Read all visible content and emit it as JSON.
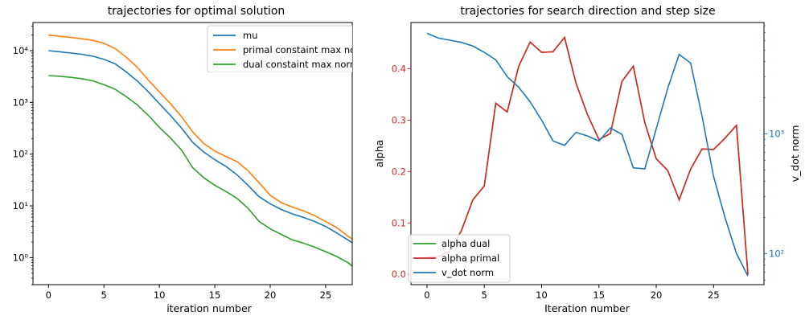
{
  "chart_data": [
    {
      "type": "line",
      "title": "trajectories for optimal solution",
      "xlabel": "iteration number",
      "ylabel": "",
      "yscale": "log",
      "xlim": [
        -1.4,
        27.4
      ],
      "ylim": [
        0.3,
        35000
      ],
      "xticks": [
        0,
        5,
        10,
        15,
        20,
        25
      ],
      "yticks": [
        {
          "value": 1,
          "label": "10⁰"
        },
        {
          "value": 10,
          "label": "10¹"
        },
        {
          "value": 100,
          "label": "10²"
        },
        {
          "value": 1000,
          "label": "10³"
        },
        {
          "value": 10000,
          "label": "10⁴"
        }
      ],
      "legend": "upper right",
      "x": [
        0,
        1,
        2,
        3,
        4,
        5,
        6,
        7,
        8,
        9,
        10,
        11,
        12,
        13,
        14,
        15,
        16,
        17,
        18,
        19,
        20,
        21,
        22,
        23,
        24,
        25,
        26,
        27,
        28
      ],
      "series": [
        {
          "name": "mu",
          "color": "#1f77b4",
          "values": [
            10000,
            9500,
            9000,
            8500,
            7800,
            6800,
            5600,
            3900,
            2600,
            1600,
            950,
            560,
            320,
            170,
            110,
            78,
            58,
            40,
            25,
            15,
            11,
            8.5,
            7,
            6,
            5,
            4,
            3,
            2.2,
            1.6
          ]
        },
        {
          "name": "primal constaint max no",
          "color": "#ff7f0e",
          "values": [
            20000,
            19000,
            18000,
            17000,
            15800,
            13900,
            11000,
            7500,
            4800,
            2700,
            1600,
            950,
            530,
            270,
            160,
            115,
            90,
            72,
            48,
            28,
            16,
            11.5,
            9.5,
            8,
            6.5,
            5,
            3.8,
            2.6,
            1.9
          ]
        },
        {
          "name": "dual constaint max norm",
          "color": "#2ca02c",
          "values": [
            3300,
            3200,
            3050,
            2880,
            2600,
            2200,
            1800,
            1300,
            900,
            560,
            330,
            205,
            120,
            55,
            35,
            25,
            19,
            14,
            9,
            5,
            3.6,
            2.8,
            2.2,
            1.9,
            1.6,
            1.3,
            1.05,
            0.8,
            0.55
          ]
        }
      ]
    },
    {
      "type": "line",
      "title": "trajectories for search direction and step size",
      "xlabel": "Iteration number",
      "ylabel": "alpha",
      "y2label": "v_dot norm",
      "y2scale": "log",
      "xlim": [
        -1.4,
        29.4
      ],
      "ylim": [
        -0.02,
        0.49
      ],
      "y2lim": [
        55,
        8500
      ],
      "xticks": [
        0,
        5,
        10,
        15,
        20,
        25
      ],
      "yticks": [
        0.0,
        0.1,
        0.2,
        0.3,
        0.4
      ],
      "y2ticks": [
        {
          "value": 100,
          "label": "10²"
        },
        {
          "value": 1000,
          "label": "10³"
        }
      ],
      "legend": "lower left",
      "x": [
        0,
        1,
        2,
        3,
        4,
        5,
        6,
        7,
        8,
        9,
        10,
        11,
        12,
        13,
        14,
        15,
        16,
        17,
        18,
        19,
        20,
        21,
        22,
        23,
        24,
        25,
        26,
        27,
        28
      ],
      "series": [
        {
          "name": "alpha dual",
          "color": "#2ca02c",
          "axis": "left",
          "values": [
            0.033,
            0.035,
            0.045,
            0.085,
            0.145,
            0.172,
            0.333,
            0.316,
            0.405,
            0.452,
            0.432,
            0.433,
            0.461,
            0.372,
            0.311,
            0.262,
            0.274,
            0.375,
            0.405,
            0.295,
            0.225,
            0.202,
            0.145,
            0.205,
            0.244,
            0.243,
            0.265,
            0.29,
            0.0
          ]
        },
        {
          "name": "alpha primal",
          "color": "#d62728",
          "axis": "left",
          "values": [
            0.033,
            0.035,
            0.045,
            0.085,
            0.145,
            0.172,
            0.333,
            0.316,
            0.405,
            0.452,
            0.432,
            0.433,
            0.461,
            0.372,
            0.311,
            0.262,
            0.274,
            0.375,
            0.405,
            0.295,
            0.225,
            0.202,
            0.145,
            0.205,
            0.244,
            0.243,
            0.265,
            0.29,
            0.0
          ]
        },
        {
          "name": "v_dot norm",
          "color": "#1f77b4",
          "axis": "right",
          "values": [
            6900,
            6300,
            6050,
            5800,
            5400,
            4800,
            4150,
            3000,
            2450,
            1850,
            1300,
            870,
            800,
            1030,
            960,
            870,
            1120,
            990,
            520,
            510,
            1100,
            2400,
            4600,
            3900,
            1400,
            440,
            200,
            100,
            65
          ]
        }
      ]
    }
  ]
}
